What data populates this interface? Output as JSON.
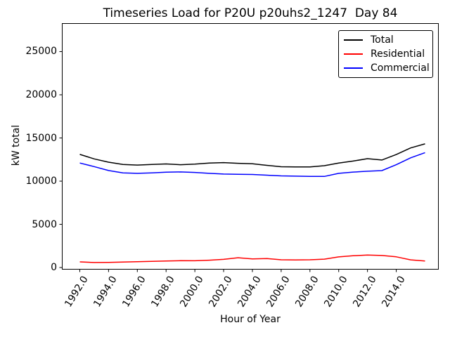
{
  "chart_data": {
    "type": "line",
    "title": "Timeseries Load for P20U p20uhs2_1247  Day 84",
    "xlabel": "Hour of Year",
    "ylabel": "kW total",
    "x": [
      1992,
      1993,
      1994,
      1995,
      1996,
      1997,
      1998,
      1999,
      2000,
      2001,
      2002,
      2003,
      2004,
      2005,
      2006,
      2007,
      2008,
      2009,
      2010,
      2011,
      2012,
      2013,
      2014,
      2015,
      2016
    ],
    "series": [
      {
        "name": "Total",
        "color": "#000000",
        "values": [
          13100,
          12580,
          12200,
          11930,
          11860,
          11930,
          11990,
          11900,
          11970,
          12090,
          12150,
          12070,
          12010,
          11830,
          11670,
          11640,
          11640,
          11790,
          12090,
          12330,
          12600,
          12450,
          13080,
          13850,
          14320
        ]
      },
      {
        "name": "Residential",
        "color": "#ff0000",
        "values": [
          650,
          580,
          600,
          640,
          670,
          720,
          760,
          790,
          780,
          850,
          950,
          1130,
          1000,
          1040,
          900,
          880,
          900,
          970,
          1230,
          1360,
          1440,
          1390,
          1240,
          890,
          760
        ]
      },
      {
        "name": "Commercial",
        "color": "#0000ff",
        "values": [
          12100,
          11680,
          11230,
          10960,
          10900,
          10960,
          11040,
          11070,
          11010,
          10900,
          10820,
          10790,
          10770,
          10690,
          10610,
          10580,
          10550,
          10550,
          10900,
          11050,
          11150,
          11220,
          11900,
          12700,
          13300
        ]
      }
    ],
    "x_ticks": [
      1992,
      1994,
      1996,
      1998,
      2000,
      2002,
      2004,
      2006,
      2008,
      2010,
      2012,
      2014
    ],
    "x_tick_labels": [
      "1992.0",
      "1994.0",
      "1996.0",
      "1998.0",
      "2000.0",
      "2002.0",
      "2004.0",
      "2006.0",
      "2008.0",
      "2010.0",
      "2012.0",
      "2014.0"
    ],
    "y_ticks": [
      0,
      5000,
      10000,
      15000,
      20000,
      25000
    ],
    "y_tick_labels": [
      "0",
      "5000",
      "10000",
      "15000",
      "20000",
      "25000"
    ],
    "xlim": [
      1990.78,
      2016.93
    ],
    "ylim": [
      -200,
      28250
    ],
    "grid": false,
    "legend_position": "upper right",
    "background": "#ffffff",
    "line_width": 1.5
  }
}
